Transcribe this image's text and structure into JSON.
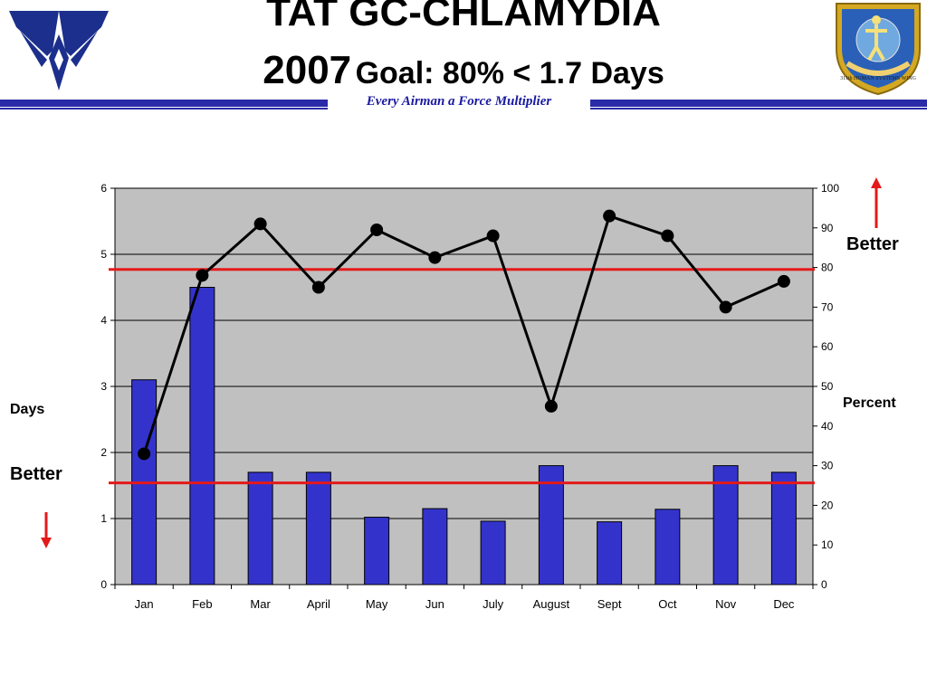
{
  "header": {
    "title_line1": "TAT GC-CHLAMYDIA",
    "title_year": "2007",
    "title_goal": "Goal: 80% < 1.7 Days",
    "tagline": "Every Airman a Force Multiplier"
  },
  "labels": {
    "left_axis": "Days",
    "right_axis": "Percent",
    "better_left": "Better",
    "better_right": "Better"
  },
  "logos": {
    "left": "air-force-wings-logo",
    "right": "human-systems-wing-emblem",
    "right_text": "311th HUMAN SYSTEMS WING"
  },
  "colors": {
    "bar": "#3333cc",
    "plot_bg": "#c0c0c0",
    "target_line": "#e41a1a",
    "line": "#000000",
    "band": "#2a2aa8"
  },
  "chart_data": {
    "type": "bar",
    "categories": [
      "Jan",
      "Feb",
      "Mar",
      "April",
      "May",
      "Jun",
      "July",
      "August",
      "Sept",
      "Oct",
      "Nov",
      "Dec"
    ],
    "series": [
      {
        "type": "bar",
        "axis": "left",
        "values": [
          3.1,
          4.5,
          1.7,
          1.7,
          1.02,
          1.15,
          0.96,
          1.8,
          0.95,
          1.14,
          1.8,
          1.7
        ]
      },
      {
        "type": "line",
        "axis": "right",
        "values": [
          33,
          78,
          91,
          75,
          89.5,
          82.5,
          88,
          45,
          93,
          88,
          70,
          76.5
        ]
      }
    ],
    "y_left": {
      "min": 0,
      "max": 6,
      "ticks": [
        "0",
        "1",
        "2",
        "3",
        "4",
        "5",
        "6"
      ]
    },
    "y_right": {
      "min": 0,
      "max": 100,
      "ticks": [
        "0",
        "10",
        "20",
        "30",
        "40",
        "50",
        "60",
        "70",
        "80",
        "90",
        "100"
      ]
    },
    "reference_lines": [
      {
        "axis": "right",
        "value": 79.5
      },
      {
        "axis": "left",
        "value": 1.54
      }
    ],
    "grid": true
  }
}
